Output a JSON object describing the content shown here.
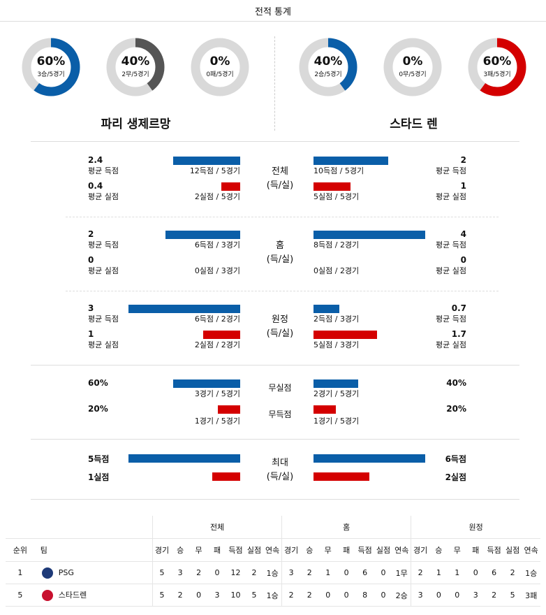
{
  "header": {
    "title": "전적 통계"
  },
  "home_team": {
    "name": "파리 생제르망",
    "donuts": [
      {
        "pct": "60%",
        "sub": "3승/5경기",
        "value": 0.6,
        "color": "#0a5ea8"
      },
      {
        "pct": "40%",
        "sub": "2무/5경기",
        "value": 0.4,
        "color": "#555555"
      },
      {
        "pct": "0%",
        "sub": "0패/5경기",
        "value": 0,
        "color": "#d40000"
      }
    ]
  },
  "away_team": {
    "name": "스타드 렌",
    "donuts": [
      {
        "pct": "40%",
        "sub": "2승/5경기",
        "value": 0.4,
        "color": "#0a5ea8"
      },
      {
        "pct": "0%",
        "sub": "0무/5경기",
        "value": 0,
        "color": "#555555"
      },
      {
        "pct": "60%",
        "sub": "3패/5경기",
        "value": 0.6,
        "color": "#d40000"
      }
    ]
  },
  "sections": [
    {
      "label": "전체\n(득/실)",
      "home": {
        "gf_val": "2.4",
        "gf_label": "평균 득점",
        "gf_detail": "12득점 / 5경기",
        "gf_fill": 0.6,
        "ga_val": "0.4",
        "ga_label": "평균 실점",
        "ga_detail": "2실점 / 5경기",
        "ga_fill": 0.17
      },
      "away": {
        "gf_val": "2",
        "gf_label": "평균 득점",
        "gf_detail": "10득점 / 5경기",
        "gf_fill": 0.67,
        "ga_val": "1",
        "ga_label": "평균 실점",
        "ga_detail": "5실점 / 5경기",
        "ga_fill": 0.33
      }
    },
    {
      "label": "홈\n(득/실)",
      "home": {
        "gf_val": "2",
        "gf_label": "평균 득점",
        "gf_detail": "6득점 / 3경기",
        "gf_fill": 0.67,
        "ga_val": "0",
        "ga_label": "평균 실점",
        "ga_detail": "0실점 / 3경기",
        "ga_fill": 0
      },
      "away": {
        "gf_val": "4",
        "gf_label": "평균 득점",
        "gf_detail": "8득점 / 2경기",
        "gf_fill": 1.0,
        "ga_val": "0",
        "ga_label": "평균 실점",
        "ga_detail": "0실점 / 2경기",
        "ga_fill": 0
      }
    },
    {
      "label": "원정\n(득/실)",
      "home": {
        "gf_val": "3",
        "gf_label": "평균 득점",
        "gf_detail": "6득점 / 2경기",
        "gf_fill": 1.0,
        "ga_val": "1",
        "ga_label": "평균 실점",
        "ga_detail": "2실점 / 2경기",
        "ga_fill": 0.33
      },
      "away": {
        "gf_val": "0.7",
        "gf_label": "평균 득점",
        "gf_detail": "2득점 / 3경기",
        "gf_fill": 0.23,
        "ga_val": "1.7",
        "ga_label": "평균 실점",
        "ga_detail": "5실점 / 3경기",
        "ga_fill": 0.57
      }
    }
  ],
  "clean": {
    "label1": "무실점",
    "label2": "무득점",
    "home": {
      "cs_val": "60%",
      "cs_detail": "3경기 / 5경기",
      "cs_fill": 0.6,
      "fs_val": "20%",
      "fs_detail": "1경기 / 5경기",
      "fs_fill": 0.2
    },
    "away": {
      "cs_val": "40%",
      "cs_detail": "2경기 / 5경기",
      "cs_fill": 0.4,
      "fs_val": "20%",
      "fs_detail": "1경기 / 5경기",
      "fs_fill": 0.2
    }
  },
  "max": {
    "label": "최대\n(득/실)",
    "home": {
      "gf": "5득점",
      "gf_fill": 1.0,
      "ga": "1실점",
      "ga_fill": 0.25
    },
    "away": {
      "gf": "6득점",
      "gf_fill": 1.0,
      "ga": "2실점",
      "ga_fill": 0.5
    }
  },
  "standings": {
    "groups": [
      "전체",
      "홈",
      "원정"
    ],
    "rank_header": "순위",
    "team_header": "팀",
    "cols": [
      "경기",
      "승",
      "무",
      "패",
      "득점",
      "실점",
      "연속"
    ],
    "rows": [
      {
        "rank": "1",
        "team": "PSG",
        "logo_color": "#1e3a78",
        "all": [
          "5",
          "3",
          "2",
          "0",
          "12",
          "2",
          "1승"
        ],
        "home": [
          "3",
          "2",
          "1",
          "0",
          "6",
          "0",
          "1무"
        ],
        "away": [
          "2",
          "1",
          "1",
          "0",
          "6",
          "2",
          "1승"
        ]
      },
      {
        "rank": "5",
        "team": "스타드렌",
        "logo_color": "#c8102e",
        "all": [
          "5",
          "2",
          "0",
          "3",
          "10",
          "5",
          "1승"
        ],
        "home": [
          "2",
          "2",
          "0",
          "0",
          "8",
          "0",
          "2승"
        ],
        "away": [
          "3",
          "0",
          "0",
          "3",
          "2",
          "5",
          "3패"
        ]
      }
    ]
  }
}
